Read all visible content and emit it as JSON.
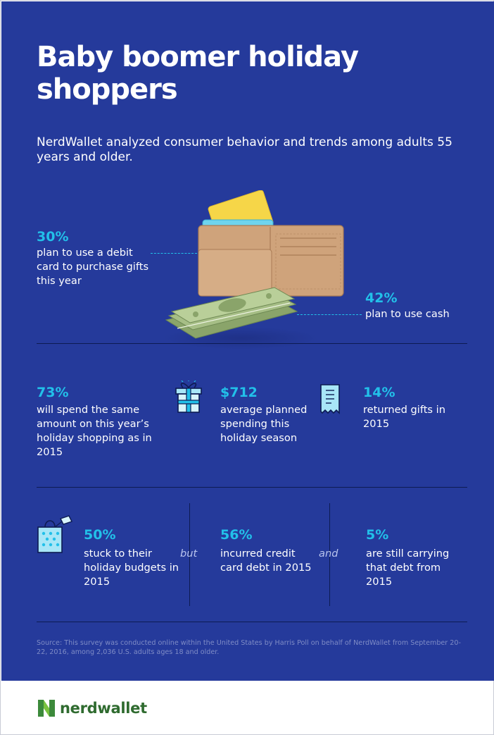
{
  "title": "Baby boomer holiday shoppers",
  "subtitle": "NerdWallet analyzed consumer behavior and trends among adults 55 years and older.",
  "payment": {
    "debit": {
      "pct": "30%",
      "text": "plan to use a debit card to purchase gifts this year"
    },
    "cash": {
      "pct": "42%",
      "text": "plan to use cash"
    }
  },
  "row1": [
    {
      "pct": "73%",
      "text": "will spend the same amount on this year’s holiday shopping as in 2015"
    },
    {
      "pct": "$712",
      "text": "average planned spending this holiday season",
      "icon": "gift-box-icon"
    },
    {
      "pct": "14%",
      "text": "returned gifts in 2015",
      "icon": "receipt-icon"
    }
  ],
  "row2": [
    {
      "pct": "50%",
      "text": "stuck to their holiday budgets in 2015",
      "icon": "shopping-bag-icon"
    },
    {
      "pct": "56%",
      "text": "incurred credit card debt in 2015"
    },
    {
      "pct": "5%",
      "text": "are still carrying that debt from 2015"
    }
  ],
  "conjunctions": {
    "first": "but",
    "second": "and"
  },
  "source": "Source: This survey was conducted online within the United States by Harris Poll on behalf of NerdWallet from September 20-22, 2016, among 2,036 U.S. adults ages 18 and older.",
  "brand": {
    "name": "nerdwallet",
    "logo_icon": "nerdwallet-n-logo-icon"
  },
  "colors": {
    "background": "#253a9b",
    "accent": "#22c0e9",
    "text": "#ffffff",
    "brand_green": "#2f6b2f"
  }
}
